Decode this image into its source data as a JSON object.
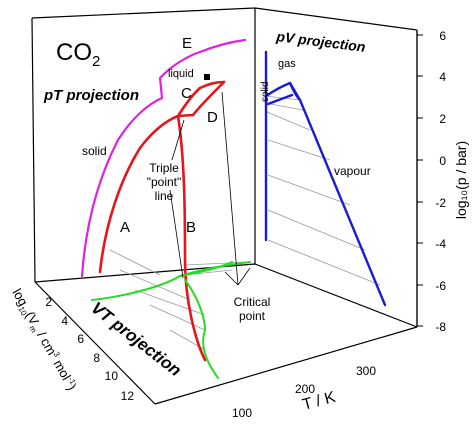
{
  "diagram": {
    "molecule": {
      "main": "CO",
      "sub": "2"
    },
    "panels": {
      "pT": "pT projection",
      "pV": "pV projection",
      "VT": "VT projection"
    },
    "region_labels": {
      "solid_pT": "solid",
      "liquid": "liquid",
      "solid_pV": "solid",
      "gas": "gas",
      "vapour": "vapour"
    },
    "curve_labels": {
      "A": "A",
      "B": "B",
      "C": "C",
      "D": "D",
      "E": "E"
    },
    "annotations": {
      "triple_point_line": [
        "Triple",
        "\"point\"",
        "line"
      ],
      "critical_point": [
        "Critical",
        "point"
      ]
    },
    "axes": {
      "log_p": {
        "label": "log₁₀(p / bar)",
        "ticks": [
          "6",
          "4",
          "2",
          "0",
          "-2",
          "-4",
          "-6",
          "-8"
        ]
      },
      "log_V": {
        "label_main": "log",
        "label_parts": [
          "10",
          "(V",
          "m",
          " / cm",
          "3",
          " mol",
          "-1",
          ")"
        ],
        "ticks": [
          "2",
          "4",
          "6",
          "8",
          "10",
          "12"
        ]
      },
      "T": {
        "label": "T / K",
        "ticks": [
          "100",
          "200",
          "300"
        ]
      }
    },
    "colors": {
      "pT_curves": "#e8141c",
      "E_curve": "#e020e0",
      "pV_curves": "#1b1bd6",
      "VT_curves": "#22dd22",
      "tie_lines": "#888888"
    }
  }
}
